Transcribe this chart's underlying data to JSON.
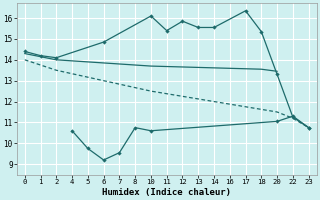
{
  "xlabel": "Humidex (Indice chaleur)",
  "bg_color": "#cff0f0",
  "line_color": "#1e6b6b",
  "grid_color": "#ffffff",
  "ylim": [
    8.5,
    16.7
  ],
  "yticks": [
    9,
    10,
    11,
    12,
    13,
    14,
    15,
    16
  ],
  "xtick_labels": [
    "0",
    "1",
    "2",
    "4",
    "5",
    "6",
    "7",
    "8",
    "10",
    "11",
    "12",
    "13",
    "14",
    "16",
    "17",
    "18",
    "20",
    "22",
    "23"
  ],
  "line1_idx": [
    0,
    1,
    2,
    5,
    8,
    9,
    10,
    11,
    12,
    14,
    15,
    16,
    17,
    18
  ],
  "line1_y": [
    14.4,
    14.2,
    14.1,
    14.85,
    16.1,
    15.4,
    15.85,
    15.55,
    15.55,
    16.35,
    15.35,
    13.3,
    11.25,
    10.75
  ],
  "line2_idx": [
    0,
    2,
    8,
    15,
    16
  ],
  "line2_y": [
    14.3,
    14.0,
    13.7,
    13.55,
    13.45
  ],
  "line3_idx": [
    0,
    2,
    8,
    16,
    17,
    18
  ],
  "line3_y": [
    14.0,
    13.5,
    12.5,
    11.5,
    11.2,
    10.75
  ],
  "line4_idx": [
    3,
    4,
    5,
    6,
    7,
    8,
    16,
    17,
    18
  ],
  "line4_y": [
    10.6,
    9.75,
    9.2,
    9.55,
    10.75,
    10.6,
    11.05,
    11.3,
    10.75
  ]
}
